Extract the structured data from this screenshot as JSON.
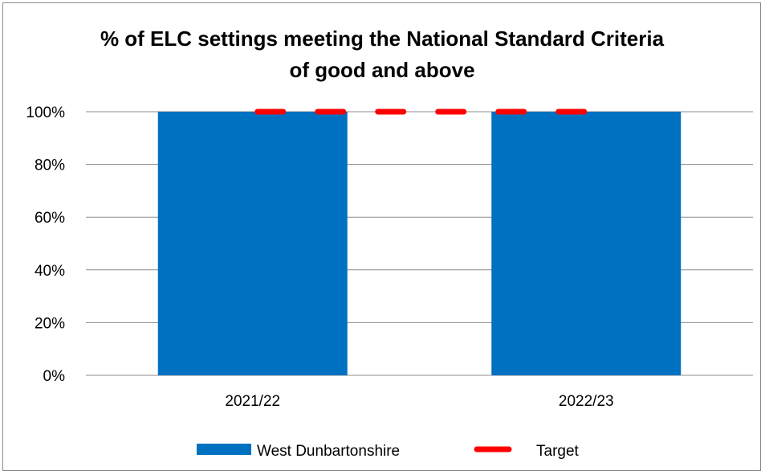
{
  "chart_data": {
    "type": "bar",
    "title_lines": [
      "% of ELC settings meeting the National Standard Criteria",
      "of good and above"
    ],
    "categories": [
      "2021/22",
      "2022/23"
    ],
    "series": [
      {
        "name": "West Dunbartonshire",
        "kind": "bar",
        "values": [
          100,
          100
        ],
        "color": "#0070C0"
      },
      {
        "name": "Target",
        "kind": "line-dashed",
        "values": [
          100,
          100
        ],
        "color": "#FF0000"
      }
    ],
    "yticks": [
      "0%",
      "20%",
      "40%",
      "60%",
      "80%",
      "100%"
    ],
    "ylim": [
      0,
      100
    ],
    "grid": true,
    "legend_position": "bottom"
  }
}
